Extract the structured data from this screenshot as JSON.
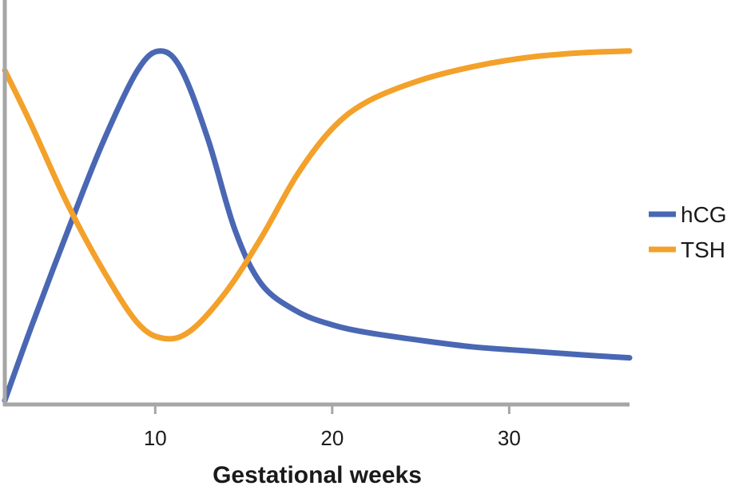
{
  "chart_data": {
    "type": "line",
    "xlabel": "Gestational weeks",
    "ylabel": "",
    "xlim": [
      1.5,
      36.8
    ],
    "ylim": [
      0,
      100
    ],
    "x_ticks": [
      10,
      20,
      30
    ],
    "y_axis_tick_labels": false,
    "grid": false,
    "legend_position": "right",
    "series": [
      {
        "name": "hCG",
        "color": "#4a67b4",
        "x": [
          1.5,
          3,
          5,
          7,
          9,
          10.3,
          11.5,
          13,
          14.5,
          16,
          18,
          20,
          22,
          25,
          28,
          31,
          34,
          36.8
        ],
        "y": [
          1,
          20,
          44,
          67,
          86,
          91,
          86,
          68,
          45,
          31,
          24,
          20.5,
          18.5,
          16.5,
          14.8,
          13.8,
          12.8,
          12
        ]
      },
      {
        "name": "TSH",
        "color": "#f3a12a",
        "x": [
          1.5,
          3,
          5,
          7,
          9,
          10.5,
          12,
          14,
          16,
          18,
          20,
          22,
          25,
          28,
          31,
          34,
          36.8
        ],
        "y": [
          86,
          72,
          52,
          35,
          21,
          17,
          19,
          29,
          43,
          59,
          71,
          78,
          83.5,
          87,
          89.3,
          90.5,
          91
        ]
      }
    ]
  }
}
